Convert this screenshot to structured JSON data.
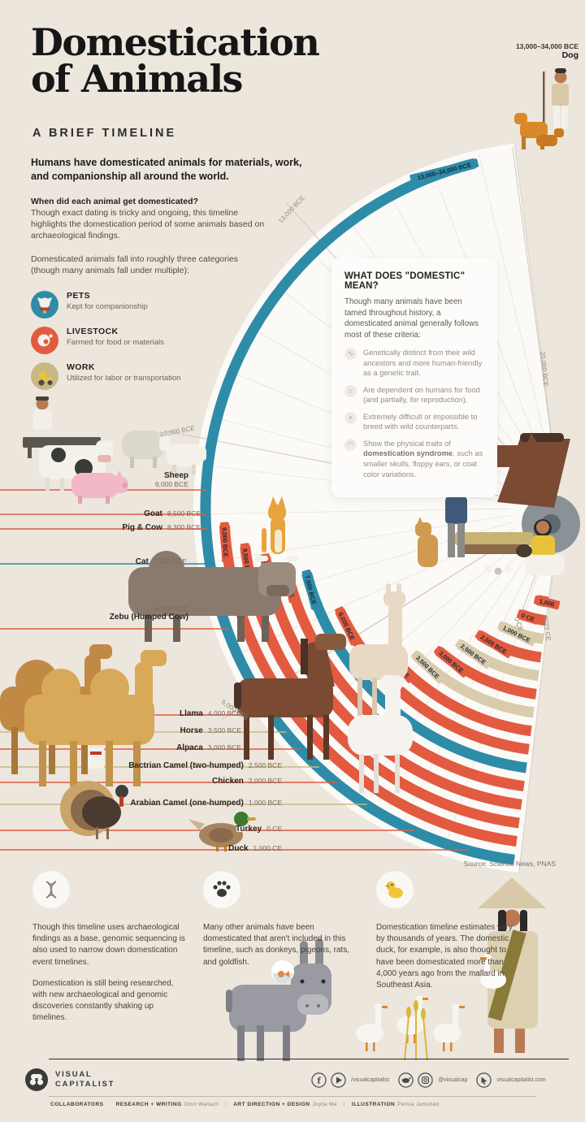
{
  "colors": {
    "background": "#ECE6DD",
    "panel": "#FBFAF7",
    "pets": "#2E8CA8",
    "livestock": "#E25B40",
    "work": "#D9CCAD",
    "work_line": "#C9B884",
    "ink": "#1F1F1F",
    "chip_text": "#1B2633"
  },
  "header": {
    "title_line1": "Domestication",
    "title_line2": "of Animals",
    "subtitle": "A BRIEF TIMELINE",
    "intro_bold": "Humans have domesticated animals for materials, work, and companionship all around the world.",
    "q_heading": "When did each animal get domesticated?",
    "q_body": "Though exact dating is tricky and ongoing, this timeline highlights the domestication period of some animals based on archaeological findings.",
    "cat_intro": "Domesticated animals fall into roughly three categories (though many animals fall under multiple):"
  },
  "legend": {
    "items": [
      {
        "key": "pets",
        "label": "PETS",
        "desc": "Kept for companionship",
        "color": "#2E8CA8"
      },
      {
        "key": "livestock",
        "label": "LIVESTOCK",
        "desc": "Farmed for food or materials",
        "color": "#E25B40"
      },
      {
        "key": "work",
        "label": "WORK",
        "desc": "Utilized for labor or transportation",
        "color": "#C9B884"
      }
    ]
  },
  "domestic_card": {
    "title": "WHAT DOES \"DOMESTIC\" MEAN?",
    "intro": "Though many animals have been tamed throughout history, a domesticated animal generally follows most of these criteria:",
    "criteria": [
      {
        "icon": "dna-icon",
        "text": "Genetically distinct from their wild ancestors and more human-friendly as a genetic trait."
      },
      {
        "icon": "food-icon",
        "text": "Are dependent on humans for food (and partially, for reproduction)."
      },
      {
        "icon": "cross-icon",
        "text": "Extremely difficult or impossible to breed with wild counterparts."
      },
      {
        "icon": "ear-icon",
        "pre": "Show the physical traits of ",
        "bold": "domestication syndrome",
        "post": ", such as smaller skulls, floppy ears, or coat color variations."
      }
    ]
  },
  "chart_data": {
    "type": "bar",
    "variant": "radial-timeline",
    "title": "Domestication of Animals — A Brief Timeline",
    "unit": "approximate date of domestication",
    "tick_labels": [
      "20,000 BCE",
      "13,000 BCE",
      "10,000 BCE",
      "5,000 BCE",
      "0 CE",
      "2022 CE"
    ],
    "timeline_end": "2022 CE",
    "legend_categories": [
      "pets",
      "livestock",
      "work"
    ],
    "animals": [
      {
        "name": "Dog",
        "date": "13,000–34,000 BCE",
        "chip": "13,000–34,000 BCE",
        "year": -23500,
        "category": "pets",
        "row_label": null
      },
      {
        "name": "Sheep",
        "date": "9,000 BCE",
        "chip": "9,000 BCE",
        "year": -9000,
        "category": "livestock",
        "row_label": "Sheep"
      },
      {
        "name": "Goat",
        "date": "8,500 BCE",
        "chip": "8,500 BCE",
        "year": -8500,
        "category": "livestock",
        "row_label": "Goat"
      },
      {
        "name": "Pig",
        "date": "8,300 BCE",
        "chip": "8,300 BCE",
        "year": -8300,
        "category": "livestock",
        "row_label": "Pig & Cow"
      },
      {
        "name": "Cow",
        "date": "8,300 BCE",
        "chip": "8,300 BCE",
        "year": -8300,
        "category": "livestock",
        "row_label": null
      },
      {
        "name": "Cat",
        "date": "7,500 BCE",
        "chip": "7,500 BCE",
        "year": -7500,
        "category": "pets",
        "row_label": "Cat"
      },
      {
        "name": "Zebu",
        "date": "6,000 BCE",
        "chip": "6,000 BCE",
        "year": -6000,
        "category": "livestock",
        "row_label": "Zebu (Humped Cow)"
      },
      {
        "name": "Llama",
        "date": "4,000 BCE",
        "chip": "4,000 BCE",
        "year": -4000,
        "category": "livestock",
        "row_label": "Llama"
      },
      {
        "name": "Horse",
        "date": "3,500 BCE",
        "chip": "3,500 BCE",
        "year": -3500,
        "category": "work",
        "row_label": "Horse"
      },
      {
        "name": "Alpaca",
        "date": "3,000 BCE",
        "chip": "3,000 BCE",
        "year": -3000,
        "category": "livestock",
        "row_label": "Alpaca"
      },
      {
        "name": "Bactrian Camel",
        "date": "2,500 BCE",
        "chip": "2,500 BCE",
        "year": -2500,
        "category": "work",
        "row_label": "Bactrian Camel (two-humped)"
      },
      {
        "name": "Chicken",
        "date": "2,000 BCE",
        "chip": "2,000 BCE",
        "year": -2000,
        "category": "livestock",
        "row_label": "Chicken"
      },
      {
        "name": "Arabian Camel",
        "date": "1,000 BCE",
        "chip": "1,000 BCE",
        "year": -1000,
        "category": "work",
        "row_label": "Arabian Camel (one-humped)"
      },
      {
        "name": "Turkey",
        "date": "0 CE",
        "chip": "0 CE",
        "year": 0,
        "category": "livestock",
        "row_label": "Turkey"
      },
      {
        "name": "Duck",
        "date": "1,000 CE",
        "chip": "1,000",
        "year": 1000,
        "category": "livestock",
        "row_label": "Duck"
      }
    ]
  },
  "source": "Source: Science News, PNAS",
  "notes": [
    {
      "icon": "dna-icon",
      "text1": "Though this timeline uses archaeological findings as a base, genomic sequencing is also used to narrow down domestication event timelines.",
      "text2": "Domestication is still being researched, with new archaeological and genomic discoveries constantly shaking up timelines."
    },
    {
      "icon": "paw-icon",
      "text1": "Many other animals have been domesticated that aren't included in this timeline, such as donkeys, pigeons, rats, and goldfish."
    },
    {
      "icon": "duck-icon",
      "text1": "Domestication timeline estimates vary by thousands of years. The domestic duck, for example, is also thought to have been domesticated more than 4,000 years ago from the mallard in Southeast Asia."
    }
  ],
  "footer": {
    "brand_line1": "VISUAL",
    "brand_line2": "CAPITALIST",
    "social_handle1": "/visualcapitalist",
    "social_handle2": "@visualcap",
    "website": "visualcapitalist.com",
    "collab_label": "COLLABORATORS",
    "credits": [
      {
        "role": "RESEARCH + WRITING",
        "name": "Omri Wallach"
      },
      {
        "role": "ART DIRECTION + DESIGN",
        "name": "Joyce Ma"
      },
      {
        "role": "ILLUSTRATION",
        "name": "Pernia Jamshed"
      }
    ]
  }
}
